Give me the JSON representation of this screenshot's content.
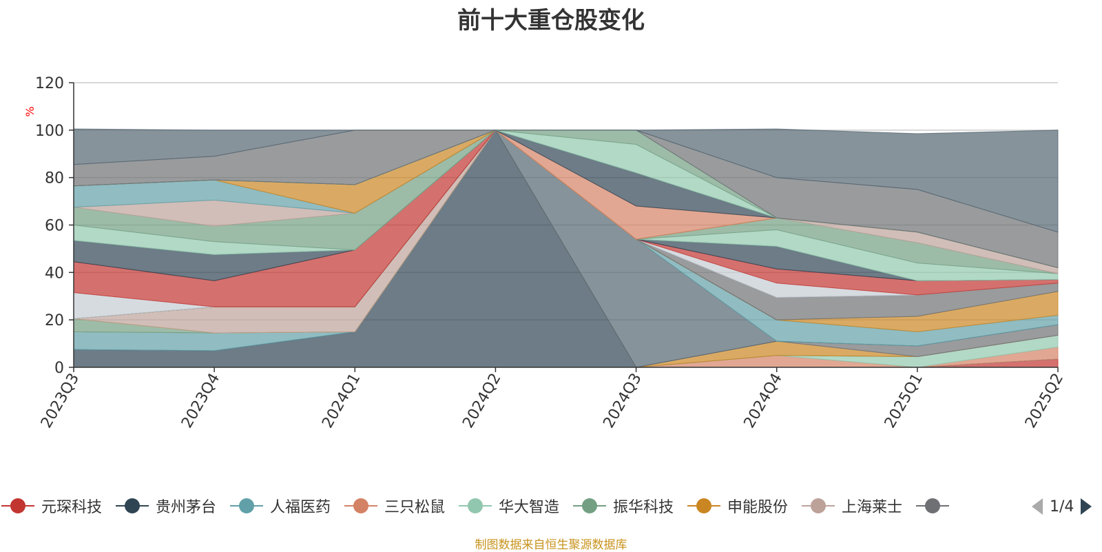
{
  "title": "前十大重仓股变化",
  "source_note": "制图数据来自恒生聚源数据库",
  "pager": {
    "text": "1/4",
    "prev_icon": "triangle-left-icon",
    "next_icon": "triangle-right-icon"
  },
  "chart_data": {
    "type": "area",
    "stacked": true,
    "title": "前十大重仓股变化",
    "ylabel": "%",
    "ylim": [
      0,
      120
    ],
    "yticks": [
      0,
      20,
      40,
      60,
      80,
      100,
      120
    ],
    "grid": true,
    "legend": "bottom",
    "categories": [
      "2023Q3",
      "2023Q4",
      "2024Q1",
      "2024Q2",
      "2024Q3",
      "2024Q4",
      "2025Q1",
      "2025Q2"
    ],
    "series": [
      {
        "name": "元琛科技",
        "color": "#c23531",
        "values": [
          0,
          0,
          0,
          0,
          0,
          0,
          0,
          3.5
        ]
      },
      {
        "name": "贵州茅台",
        "color": "#2f4554",
        "values": [
          7.5,
          7,
          15,
          100,
          0,
          0,
          0,
          0
        ]
      },
      {
        "name": "人福医药",
        "color": "#61a0a8",
        "values": [
          7.5,
          7.5,
          0,
          0,
          0,
          0,
          0,
          0
        ]
      },
      {
        "name": "三只松鼠",
        "color": "#d48265",
        "values": [
          0,
          0,
          0,
          0,
          0,
          5,
          0,
          5
        ]
      },
      {
        "name": "华大智造",
        "color": "#91c7ae",
        "values": [
          0,
          0,
          0,
          0,
          0,
          0,
          4.5,
          5
        ]
      },
      {
        "name": "振华科技",
        "color": "#749f83",
        "values": [
          5.5,
          0,
          0,
          0,
          0,
          0,
          0,
          0
        ]
      },
      {
        "name": "申能股份",
        "color": "#ca8622",
        "values": [
          0,
          0,
          0,
          0,
          0,
          6,
          0,
          0
        ]
      },
      {
        "name": "上海莱士",
        "color": "#bda29a",
        "values": [
          0,
          11,
          10.5,
          0,
          0,
          0,
          0,
          0
        ]
      },
      {
        "name": "",
        "color": "#6e7074",
        "values": [
          0,
          0,
          0,
          0,
          0,
          0,
          4.5,
          4.5
        ]
      },
      {
        "name": "",
        "color": "#546570",
        "values": [
          0,
          0,
          0,
          0,
          54,
          0,
          0,
          0
        ]
      },
      {
        "name": "",
        "color": "#61a0a8",
        "values": [
          0,
          0,
          0,
          0,
          0,
          9,
          6,
          4
        ]
      },
      {
        "name": "",
        "color": "#ca8622",
        "values": [
          0,
          0,
          0,
          0,
          0,
          0,
          6.5,
          10
        ]
      },
      {
        "name": "",
        "color": "#6e7074",
        "values": [
          0,
          0,
          0,
          0,
          0,
          9.5,
          9,
          3.5
        ]
      },
      {
        "name": "",
        "color": "#c4ccd3",
        "values": [
          11,
          0,
          0,
          0,
          0,
          6,
          0,
          0
        ]
      },
      {
        "name": "",
        "color": "#c23531",
        "values": [
          13,
          11,
          24,
          0,
          0,
          6,
          6,
          1.5
        ]
      },
      {
        "name": "",
        "color": "#2f4554",
        "values": [
          9,
          11,
          0,
          0,
          0,
          9.5,
          0,
          0
        ]
      },
      {
        "name": "",
        "color": "#91c7ae",
        "values": [
          6.5,
          5.5,
          0,
          0,
          0,
          7,
          7.5,
          2.5
        ]
      },
      {
        "name": "",
        "color": "#749f83",
        "values": [
          7.5,
          6.5,
          15.5,
          0,
          0,
          5,
          8.5,
          0
        ]
      },
      {
        "name": "",
        "color": "#bda29a",
        "values": [
          0,
          11,
          0,
          0,
          0,
          0,
          4.5,
          2.5
        ]
      },
      {
        "name": "",
        "color": "#61a0a8",
        "values": [
          9,
          8.5,
          0,
          0,
          0,
          0,
          0,
          0
        ]
      },
      {
        "name": "",
        "color": "#ca8622",
        "values": [
          0,
          0,
          12,
          0,
          0,
          0,
          0,
          0
        ]
      },
      {
        "name": "",
        "color": "#d48265",
        "values": [
          0,
          0,
          0,
          0,
          14,
          0,
          0,
          0
        ]
      },
      {
        "name": "",
        "color": "#2f4554",
        "values": [
          0,
          0,
          0,
          0,
          14,
          0,
          0,
          0
        ]
      },
      {
        "name": "",
        "color": "#91c7ae",
        "values": [
          0,
          0,
          0,
          0,
          12,
          0,
          0,
          0
        ]
      },
      {
        "name": "",
        "color": "#749f83",
        "values": [
          0,
          0,
          0,
          0,
          6,
          0,
          0,
          0
        ]
      },
      {
        "name": "",
        "color": "#6e7074",
        "values": [
          9,
          10,
          23,
          0,
          0,
          17,
          18,
          15
        ]
      },
      {
        "name": "",
        "color": "#546570",
        "values": [
          15,
          11,
          0,
          0,
          0,
          20.5,
          23.5,
          43
        ]
      }
    ]
  }
}
